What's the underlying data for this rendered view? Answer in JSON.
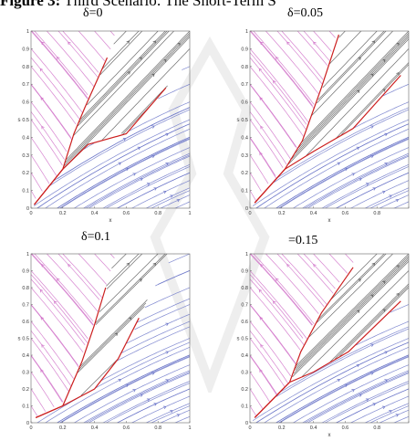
{
  "figure": {
    "label": "Figure 3:",
    "title": "Third Scenario: The Short-Term S"
  },
  "colors": {
    "stream_pink": "#d070c8",
    "stream_blue": "#6a74c8",
    "stream_black": "#555555",
    "boundary_red": "#cc1f1f",
    "frame": "#666666",
    "watermark": "#d9d9d9"
  },
  "chart_data": [
    {
      "type": "streamplot",
      "title": "δ=0",
      "xlabel": "x",
      "ylabel": "s",
      "xlim": [
        0,
        1
      ],
      "ylim": [
        0,
        1
      ],
      "x_ticks": [
        "0",
        "0.2",
        "0.4",
        "0.6",
        "0.8",
        "1"
      ],
      "y_ticks": [
        "0",
        "0.1",
        "0.2",
        "0.3",
        "0.4",
        "0.5",
        "0.6",
        "0.7",
        "0.8",
        "0.9",
        "1"
      ],
      "upper_boundary": [
        [
          0.02,
          0.02
        ],
        [
          0.2,
          0.22
        ],
        [
          0.27,
          0.42
        ],
        [
          0.34,
          0.57
        ],
        [
          0.48,
          0.85
        ]
      ],
      "lower_boundary": [
        [
          0.02,
          0.02
        ],
        [
          0.2,
          0.22
        ],
        [
          0.36,
          0.36
        ],
        [
          0.6,
          0.42
        ],
        [
          0.85,
          0.68
        ]
      ]
    },
    {
      "type": "streamplot",
      "title": "δ=0.05",
      "xlabel": "x",
      "ylabel": "s",
      "xlim": [
        0,
        1
      ],
      "ylim": [
        0,
        1
      ],
      "x_ticks": [
        "0",
        "0.2",
        "0.4",
        "0.6",
        "0.8",
        ""
      ],
      "y_ticks": [
        "0",
        "0.1",
        "0.2",
        "0.3",
        "0.4",
        "0.5",
        "0.6",
        "0.7",
        "0.8",
        "0.9",
        "1"
      ],
      "upper_boundary": [
        [
          0.03,
          0.03
        ],
        [
          0.22,
          0.22
        ],
        [
          0.33,
          0.38
        ],
        [
          0.45,
          0.68
        ],
        [
          0.56,
          0.98
        ]
      ],
      "lower_boundary": [
        [
          0.03,
          0.03
        ],
        [
          0.22,
          0.22
        ],
        [
          0.4,
          0.32
        ],
        [
          0.65,
          0.45
        ],
        [
          0.95,
          0.75
        ]
      ]
    },
    {
      "type": "streamplot",
      "title": "δ=0.1",
      "xlabel": "",
      "ylabel": "s",
      "xlim": [
        0,
        1
      ],
      "ylim": [
        0,
        1
      ],
      "x_ticks": [
        "0",
        "0.2",
        "0.4",
        "0.6",
        "0.8",
        "1"
      ],
      "y_ticks": [
        "0",
        "0.1",
        "0.2",
        "0.3",
        "0.4",
        "0.5",
        "0.6",
        "0.7",
        "0.8",
        "0.9",
        "1"
      ],
      "upper_boundary": [
        [
          0.03,
          0.03
        ],
        [
          0.2,
          0.1
        ],
        [
          0.32,
          0.36
        ],
        [
          0.4,
          0.58
        ],
        [
          0.47,
          0.8
        ]
      ],
      "lower_boundary": [
        [
          0.03,
          0.03
        ],
        [
          0.2,
          0.1
        ],
        [
          0.4,
          0.2
        ],
        [
          0.55,
          0.38
        ],
        [
          0.68,
          0.62
        ]
      ]
    },
    {
      "type": "streamplot",
      "title": "=0.15",
      "xlabel": "x",
      "ylabel": "s",
      "xlim": [
        0,
        1
      ],
      "ylim": [
        0,
        1
      ],
      "x_ticks": [
        "0",
        "0.2",
        "0.4",
        "0.6",
        "0.8",
        ""
      ],
      "y_ticks": [
        "0",
        "0.1",
        "0.2",
        "0.3",
        "0.4",
        "0.5",
        "0.6",
        "0.7",
        "0.8",
        "0.9",
        "1"
      ],
      "upper_boundary": [
        [
          0.03,
          0.03
        ],
        [
          0.25,
          0.24
        ],
        [
          0.32,
          0.42
        ],
        [
          0.45,
          0.65
        ],
        [
          0.65,
          0.92
        ]
      ],
      "lower_boundary": [
        [
          0.03,
          0.03
        ],
        [
          0.25,
          0.24
        ],
        [
          0.4,
          0.3
        ],
        [
          0.62,
          0.42
        ],
        [
          0.95,
          0.72
        ]
      ]
    }
  ]
}
